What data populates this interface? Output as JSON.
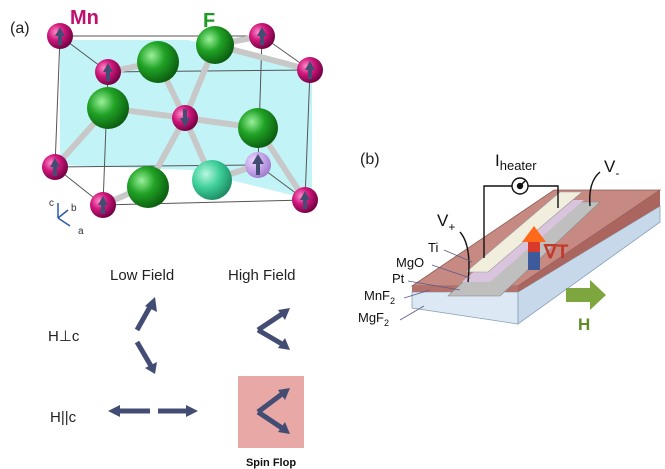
{
  "panel_a": {
    "label": "(a)",
    "atom_mn": "Mn",
    "atom_f": "F",
    "axes": {
      "c": "c",
      "b": "b",
      "a": "a"
    },
    "row_header_low": "Low Field",
    "row_header_high": "High Field",
    "row_perp": "H⊥c",
    "row_par": "H||c",
    "spin_flop": "Spin Flop",
    "colors": {
      "mn": "#c0106f",
      "f": "#1f9a22",
      "plane": "#aef0f4",
      "spin_arrow": "#434d73",
      "spin_flop_box": "#e8a8a6"
    }
  },
  "panel_b": {
    "label": "(b)",
    "heater_I": "I",
    "heater_sub": "heater",
    "v_plus": "V",
    "v_plus_sub": "+",
    "v_minus": "V",
    "v_minus_sub": "-",
    "layers": {
      "ti": "Ti",
      "mgo": "MgO",
      "pt": "Pt",
      "mnf2": "MnF",
      "mnf2_sub": "2",
      "mgf2": "MgF",
      "mgf2_sub": "2"
    },
    "grad_t": "∇T",
    "field": "H",
    "colors": {
      "substrate": "#c78a83",
      "field_arrow": "#7ea63e",
      "grad": "#c0392b"
    }
  }
}
